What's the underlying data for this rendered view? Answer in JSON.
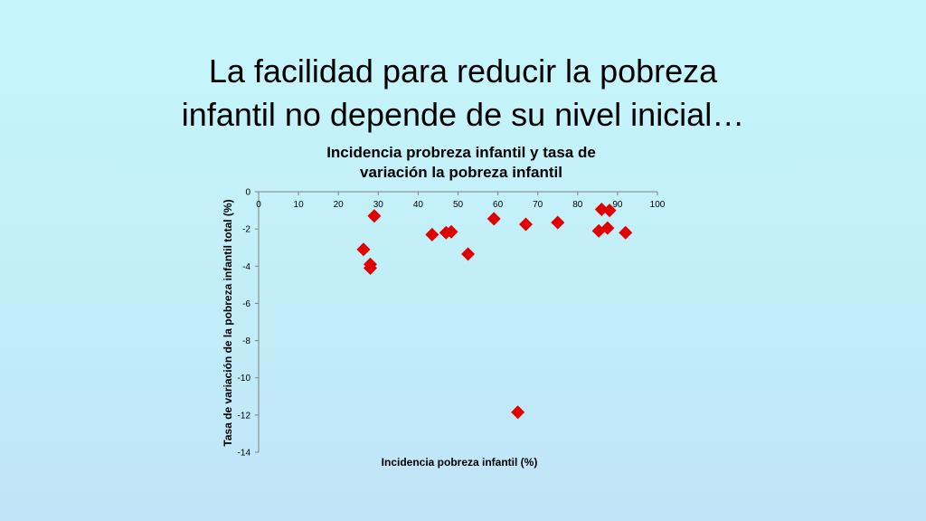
{
  "slide": {
    "title_line1": "La facilidad para reducir la pobreza",
    "title_line2": "infantil no depende de su nivel inicial…"
  },
  "chart_data": {
    "type": "scatter",
    "title_line1": "Incidencia probreza infantil y tasa de",
    "title_line2": "variación la pobreza infantil",
    "xlabel": "Incidencia pobreza infantil (%)",
    "ylabel": "Tasa de variación de la pobreza infantil total (%)",
    "xlim": [
      0,
      100
    ],
    "ylim": [
      -14,
      0
    ],
    "xticks": [
      0,
      10,
      20,
      30,
      40,
      50,
      60,
      70,
      80,
      90,
      100
    ],
    "yticks": [
      0,
      -2,
      -4,
      -6,
      -8,
      -10,
      -12,
      -14
    ],
    "x_axis_position": "top",
    "grid": false,
    "marker": "diamond",
    "marker_color": "#e00000",
    "points": [
      {
        "x": 26.3,
        "y": -3.1
      },
      {
        "x": 28.0,
        "y": -3.9
      },
      {
        "x": 28.0,
        "y": -4.1
      },
      {
        "x": 29.0,
        "y": -1.3
      },
      {
        "x": 43.5,
        "y": -2.3
      },
      {
        "x": 47.0,
        "y": -2.2
      },
      {
        "x": 48.3,
        "y": -2.15
      },
      {
        "x": 52.5,
        "y": -3.35
      },
      {
        "x": 59.0,
        "y": -1.45
      },
      {
        "x": 65.0,
        "y": -11.85
      },
      {
        "x": 67.0,
        "y": -1.75
      },
      {
        "x": 75.0,
        "y": -1.65
      },
      {
        "x": 85.3,
        "y": -2.1
      },
      {
        "x": 86.0,
        "y": -0.95
      },
      {
        "x": 87.5,
        "y": -1.95
      },
      {
        "x": 88.0,
        "y": -1.0
      },
      {
        "x": 92.0,
        "y": -2.2
      }
    ]
  }
}
